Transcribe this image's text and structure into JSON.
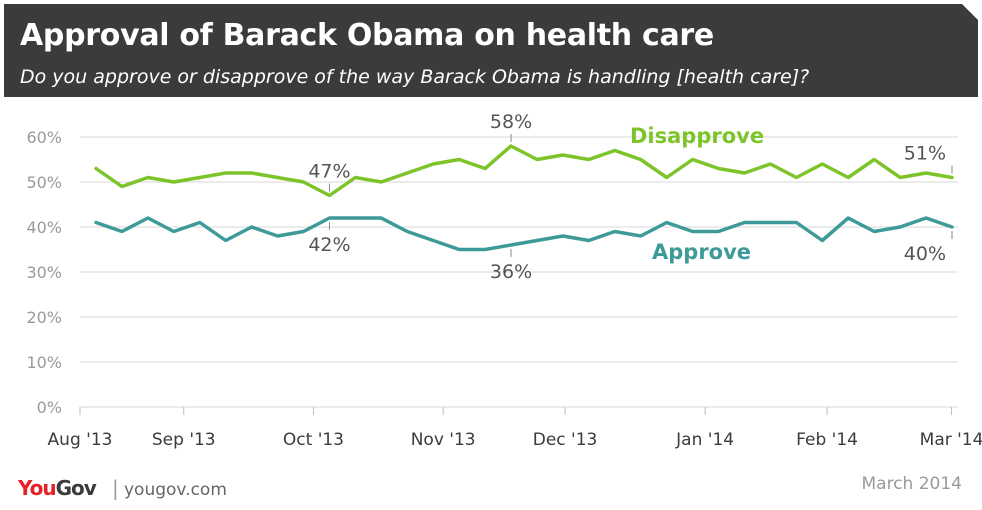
{
  "header": {
    "title": "Approval of Barack Obama on health care",
    "subtitle": "Do you approve or disapprove of the way Barack Obama is handling [health care]?"
  },
  "footer": {
    "logo_you": "You",
    "logo_gov": "Gov",
    "separator": "|",
    "site": "yougov.com",
    "date": "March 2014"
  },
  "colors": {
    "disapprove": "#7dc42a",
    "approve": "#3e9a99",
    "grid": "#d7d7d7",
    "tick_text": "#9a9a9a",
    "month_text": "#3b3b3b",
    "callout_text": "#555555"
  },
  "chart_data": {
    "type": "line",
    "title": "Approval of Barack Obama on health care",
    "subtitle": "Do you approve or disapprove of the way Barack Obama is handling [health care]?",
    "ylim": [
      0,
      60
    ],
    "yticks": [
      0,
      10,
      20,
      30,
      40,
      50,
      60
    ],
    "ytick_labels": [
      "0%",
      "10%",
      "20%",
      "30%",
      "40%",
      "50%",
      "60%"
    ],
    "x_month_labels": [
      "Aug '13",
      "Sep '13",
      "Oct '13",
      "Nov '13",
      "Dec '13",
      "Jan '14",
      "Feb '14",
      "Mar '14"
    ],
    "x_month_positions": [
      0,
      4,
      9,
      14,
      18.7,
      24.1,
      28.8,
      33.6
    ],
    "grid": true,
    "series": [
      {
        "name": "Disapprove",
        "values": [
          53,
          49,
          51,
          50,
          51,
          52,
          52,
          51,
          50,
          47,
          51,
          50,
          52,
          54,
          55,
          53,
          58,
          55,
          56,
          55,
          57,
          55,
          51,
          55,
          53,
          52,
          54,
          51,
          54,
          51,
          55,
          51,
          52,
          51
        ]
      },
      {
        "name": "Approve",
        "values": [
          41,
          39,
          42,
          39,
          41,
          37,
          40,
          38,
          39,
          42,
          42,
          42,
          39,
          37,
          35,
          35,
          36,
          37,
          38,
          37,
          39,
          38,
          41,
          39,
          39,
          41,
          41,
          41,
          37,
          42,
          39,
          40,
          42,
          40
        ]
      }
    ],
    "annotations": [
      {
        "series": 0,
        "index": 9,
        "text": "47%",
        "position": "above"
      },
      {
        "series": 0,
        "index": 16,
        "text": "58%",
        "position": "above"
      },
      {
        "series": 0,
        "index": 33,
        "text": "51%",
        "position": "above"
      },
      {
        "series": 1,
        "index": 9,
        "text": "42%",
        "position": "below"
      },
      {
        "series": 1,
        "index": 16,
        "text": "36%",
        "position": "below"
      },
      {
        "series": 1,
        "index": 33,
        "text": "40%",
        "position": "below"
      }
    ]
  }
}
